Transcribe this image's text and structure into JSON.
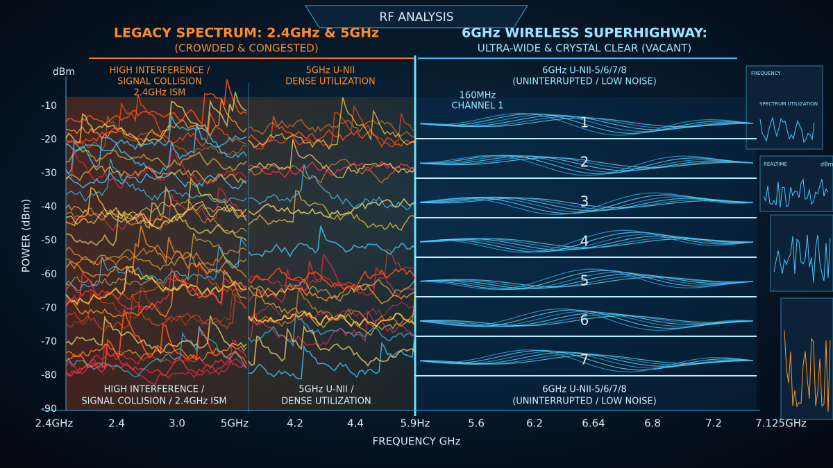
{
  "header": {
    "title": "RF ANALYSIS"
  },
  "legacy": {
    "title": "LEGACY SPECTRUM: 2.4GHz & 5GHz",
    "subtitle": "(CROWDED & CONGESTED)",
    "band_24": {
      "top": [
        "HIGH INTERFERENCE /",
        "SIGNAL COLLISION",
        "2.4GHz ISM"
      ],
      "bottom": [
        "HIGH INTERFERENCE /",
        "SIGNAL COLLISION / 2.4GHz ISM"
      ]
    },
    "band_5": {
      "top": [
        "5GHz U-NII",
        "DENSE UTILIZATION"
      ],
      "bottom": [
        "5GHz U-NII /",
        "DENSE UTILIZATION"
      ]
    }
  },
  "superhighway": {
    "title": "6GHz WIRELESS SUPERHIGHWAY:",
    "subtitle": "ULTRA-WIDE & CRYSTAL CLEAR (VACANT)",
    "top": [
      "6GHz U-NII-5/6/7/8",
      "(UNINTERRUPTED / LOW NOISE)"
    ],
    "bottom": [
      "6GHz U-NII-5/6/7/8",
      "(UNINTERRUPTED / LOW NOISE)"
    ],
    "channel_note": [
      "160MHz",
      "CHANNEL 1"
    ],
    "channels": [
      "1",
      "2",
      "3",
      "4",
      "5",
      "6",
      "7"
    ]
  },
  "y_axis": {
    "unit": "dBm",
    "label": "POWER (dBm)",
    "ticks": [
      "-10",
      "-20",
      "-30",
      "-40",
      "-50",
      "-60",
      "-70",
      "-70",
      "-80",
      "-90"
    ]
  },
  "x_axis": {
    "label": "FREQUENCY GHz",
    "ticks": [
      "2.4GHz",
      "2.4",
      "3.0",
      "5GHz",
      "4.2",
      "4.4",
      "5.9Hz",
      "5.6",
      "6.2",
      "6.64",
      "6.8",
      "7.2",
      "7.125GHz"
    ]
  },
  "side_panel": {
    "frequency": "FREQUENCY",
    "utilization": "SPECTRUM UTILIZATION",
    "realtime": "REALTIME",
    "unit": "dBm"
  }
}
